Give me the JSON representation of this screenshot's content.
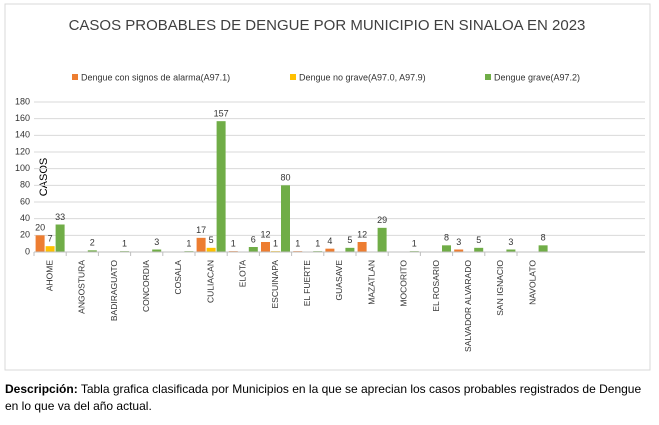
{
  "chart_data": {
    "type": "bar",
    "title": "CASOS PROBABLES DE DENGUE POR MUNICIPIO EN SINALOA EN 2023",
    "y_label": "CASOS",
    "categories": [
      "AHOME",
      "ANGOSTURA",
      "BADIRAGUATO",
      "CONCORDIA",
      "COSALA",
      "CULIACAN",
      "ELOTA",
      "ESCUINAPA",
      "EL FUERTE",
      "GUASAVE",
      "MAZATLAN",
      "MOCORITO",
      "EL ROSARIO",
      "SALVADOR ALVARADO",
      "SAN IGNACIO",
      "NAVOLATO"
    ],
    "series": [
      {
        "name": "Dengue con signos de alarma(A97.1)",
        "color": "#ed7d31",
        "values": [
          20,
          null,
          null,
          null,
          null,
          17,
          1,
          12,
          1,
          4,
          12,
          null,
          null,
          3,
          null,
          null
        ]
      },
      {
        "name": "Dengue no grave(A97.0, A97.9)",
        "color": "#ffc000",
        "values": [
          7,
          null,
          null,
          null,
          null,
          5,
          null,
          1,
          null,
          null,
          null,
          null,
          null,
          null,
          null,
          null
        ]
      },
      {
        "name": "Dengue grave(A97.2)",
        "color": "#70ad47",
        "values": [
          33,
          2,
          1,
          3,
          1,
          157,
          6,
          80,
          1,
          5,
          29,
          1,
          8,
          5,
          3,
          8
        ]
      }
    ],
    "ylim": [
      0,
      180
    ],
    "yticks": [
      0,
      20,
      40,
      60,
      80,
      100,
      120,
      140,
      160,
      180
    ],
    "grid": true,
    "legend": "top"
  },
  "description": {
    "label": "Descripción:",
    "text": "Tabla grafica clasificada por Municipios en la que se aprecian los casos probables registrados de Dengue en lo que va del año actual."
  }
}
